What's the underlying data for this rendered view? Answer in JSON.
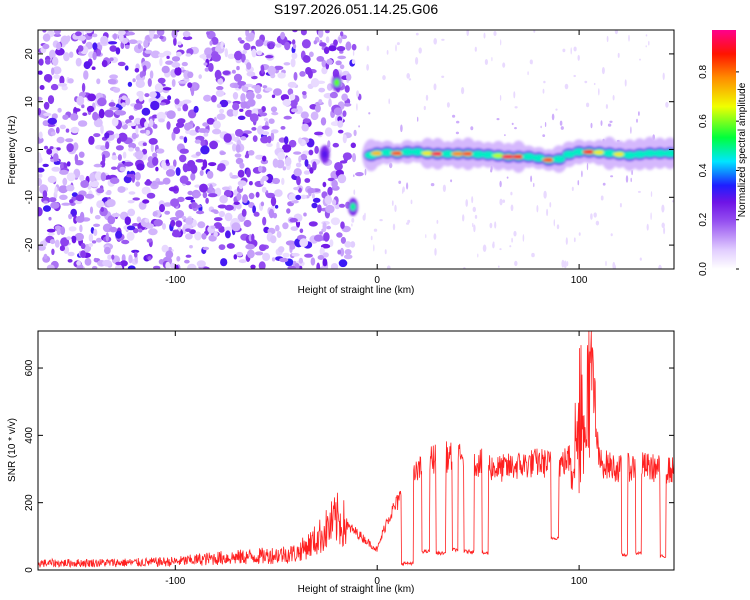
{
  "title": "S197.2026.051.14.25.G06",
  "chart_data": [
    {
      "type": "heatmap",
      "title": "S197.2026.051.14.25.G06",
      "xlabel": "Height of straight line (km)",
      "ylabel": "Frequency (Hz)",
      "xlim": [
        -168,
        147
      ],
      "ylim": [
        -25,
        25
      ],
      "xticks": [
        -100,
        0,
        100
      ],
      "yticks": [
        -20,
        -10,
        0,
        10,
        20
      ],
      "colorbar": {
        "label": "Normalized spectral amplitude",
        "range": [
          0,
          0.97
        ],
        "ticks": [
          0.0,
          0.2,
          0.4,
          0.6,
          0.8
        ],
        "tick_labels": [
          "0.0",
          "0.2",
          "0.4",
          "0.6",
          "0.8"
        ],
        "colors": [
          "#ffffff",
          "#c9a0ff",
          "#8a2be2",
          "#1515ff",
          "#00ffff",
          "#00ff00",
          "#ffff00",
          "#ff8000",
          "#ff0000",
          "#ff0080"
        ]
      },
      "noise_region_km": [
        -168,
        -14
      ],
      "signal_line": [
        {
          "x": -3,
          "freq": -1.2,
          "amp": 0.55
        },
        {
          "x": 0,
          "freq": -0.8,
          "amp": 0.75
        },
        {
          "x": 5,
          "freq": -0.6,
          "amp": 0.5
        },
        {
          "x": 10,
          "freq": -0.8,
          "amp": 0.85
        },
        {
          "x": 15,
          "freq": -0.5,
          "amp": 0.45
        },
        {
          "x": 20,
          "freq": -0.5,
          "amp": 0.6
        },
        {
          "x": 25,
          "freq": -0.8,
          "amp": 0.7
        },
        {
          "x": 30,
          "freq": -0.9,
          "amp": 0.95
        },
        {
          "x": 35,
          "freq": -0.9,
          "amp": 0.5
        },
        {
          "x": 40,
          "freq": -0.9,
          "amp": 0.8
        },
        {
          "x": 45,
          "freq": -0.9,
          "amp": 0.85
        },
        {
          "x": 50,
          "freq": -1.0,
          "amp": 0.45
        },
        {
          "x": 55,
          "freq": -1.1,
          "amp": 0.5
        },
        {
          "x": 60,
          "freq": -1.3,
          "amp": 0.65
        },
        {
          "x": 65,
          "freq": -1.5,
          "amp": 0.95
        },
        {
          "x": 70,
          "freq": -1.5,
          "amp": 0.92
        },
        {
          "x": 75,
          "freq": -1.5,
          "amp": 0.6
        },
        {
          "x": 80,
          "freq": -1.8,
          "amp": 0.55
        },
        {
          "x": 85,
          "freq": -2.2,
          "amp": 0.85
        },
        {
          "x": 90,
          "freq": -2.0,
          "amp": 0.6
        },
        {
          "x": 95,
          "freq": -1.0,
          "amp": 0.35
        },
        {
          "x": 100,
          "freq": -0.5,
          "amp": 0.45
        },
        {
          "x": 105,
          "freq": -0.5,
          "amp": 0.9
        },
        {
          "x": 110,
          "freq": -0.6,
          "amp": 0.7
        },
        {
          "x": 115,
          "freq": -0.8,
          "amp": 0.5
        },
        {
          "x": 120,
          "freq": -1.0,
          "amp": 0.7
        },
        {
          "x": 125,
          "freq": -1.2,
          "amp": 0.6
        },
        {
          "x": 130,
          "freq": -1.0,
          "amp": 0.45
        },
        {
          "x": 135,
          "freq": -0.8,
          "amp": 0.5
        },
        {
          "x": 140,
          "freq": -0.8,
          "amp": 0.55
        },
        {
          "x": 145,
          "freq": -0.8,
          "amp": 0.5
        }
      ],
      "isolated_blobs": [
        {
          "x": -20,
          "freq": 14,
          "amp": 0.6
        },
        {
          "x": -12,
          "freq": -12,
          "amp": 0.5
        },
        {
          "x": -26,
          "freq": -1,
          "amp": 0.3
        }
      ]
    },
    {
      "type": "line",
      "xlabel": "Height of straight line (km)",
      "ylabel": "SNR (10 * v/v)",
      "xlim": [
        -168,
        147
      ],
      "ylim": [
        0,
        710
      ],
      "xticks": [
        -100,
        0,
        100
      ],
      "yticks": [
        0,
        200,
        400,
        600
      ],
      "color": "#ff2020",
      "envelope": {
        "x": [
          -168,
          -120,
          -100,
          -80,
          -60,
          -40,
          -30,
          -20,
          -10,
          0,
          5,
          10,
          15,
          20,
          25,
          30,
          40,
          50,
          60,
          70,
          80,
          90,
          95,
          100,
          105,
          110,
          120,
          130,
          140,
          147
        ],
        "y": [
          20,
          22,
          25,
          35,
          40,
          50,
          90,
          150,
          110,
          60,
          150,
          200,
          250,
          290,
          320,
          340,
          330,
          320,
          300,
          310,
          320,
          310,
          330,
          400,
          600,
          320,
          300,
          310,
          300,
          295
        ]
      },
      "dropouts": [
        {
          "x0": 12,
          "x1": 18,
          "y": 15
        },
        {
          "x0": 22,
          "x1": 26,
          "y": 50
        },
        {
          "x0": 29,
          "x1": 34,
          "y": 45
        },
        {
          "x0": 37,
          "x1": 40,
          "y": 55
        },
        {
          "x0": 43,
          "x1": 48,
          "y": 50
        },
        {
          "x0": 52,
          "x1": 55,
          "y": 45
        },
        {
          "x0": 86,
          "x1": 90,
          "y": 90
        },
        {
          "x0": 121,
          "x1": 124,
          "y": 40
        },
        {
          "x0": 128,
          "x1": 131,
          "y": 45
        },
        {
          "x0": 140,
          "x1": 143,
          "y": 35
        }
      ]
    }
  ]
}
